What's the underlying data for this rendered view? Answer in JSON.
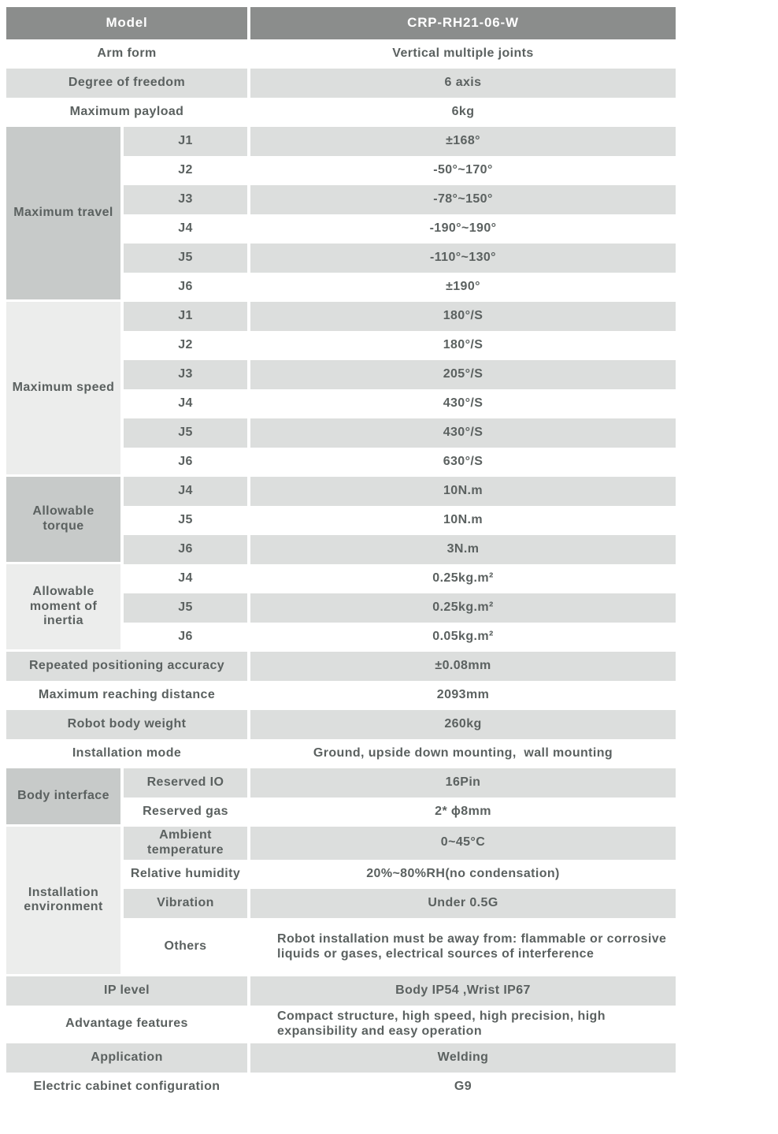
{
  "palette": {
    "header_bg": "#8b8d8c",
    "header_text": "#ffffff",
    "stripe_gray": "#dcdedd",
    "group_label_dark": "#c7cac9",
    "group_label_light": "#ecedec",
    "body_text": "#5b6160",
    "page_bg": "#ffffff"
  },
  "table": {
    "header": {
      "label": "Model",
      "value": "CRP-RH21-06-W"
    },
    "sections": [
      {
        "type": "rows",
        "rows": [
          {
            "label": "Arm form",
            "value": "Vertical multiple joints"
          },
          {
            "label": "Degree of freedom",
            "value": "6 axis"
          },
          {
            "label": "Maximum payload",
            "value": "6kg"
          }
        ]
      },
      {
        "type": "group",
        "label": "Maximum travel",
        "shade": "dark",
        "rows": [
          {
            "label": "J1",
            "value": "±168°"
          },
          {
            "label": "J2",
            "value": "-50°~170°"
          },
          {
            "label": "J3",
            "value": "-78°~150°"
          },
          {
            "label": "J4",
            "value": "-190°~190°"
          },
          {
            "label": "J5",
            "value": "-110°~130°"
          },
          {
            "label": "J6",
            "value": "±190°"
          }
        ]
      },
      {
        "type": "group",
        "label": "Maximum speed",
        "shade": "light",
        "rows": [
          {
            "label": "J1",
            "value": "180°/S"
          },
          {
            "label": "J2",
            "value": "180°/S"
          },
          {
            "label": "J3",
            "value": "205°/S"
          },
          {
            "label": "J4",
            "value": "430°/S"
          },
          {
            "label": "J5",
            "value": "430°/S"
          },
          {
            "label": "J6",
            "value": "630°/S"
          }
        ]
      },
      {
        "type": "group",
        "label": "Allowable torque",
        "shade": "dark",
        "rows": [
          {
            "label": "J4",
            "value": "10N.m"
          },
          {
            "label": "J5",
            "value": "10N.m"
          },
          {
            "label": "J6",
            "value": "3N.m"
          }
        ]
      },
      {
        "type": "group",
        "label": "Allowable moment of inertia",
        "shade": "light",
        "rows": [
          {
            "label": "J4",
            "value": "0.25kg.m²"
          },
          {
            "label": "J5",
            "value": "0.25kg.m²"
          },
          {
            "label": "J6",
            "value": "0.05kg.m²"
          }
        ]
      },
      {
        "type": "rows",
        "rows": [
          {
            "label": "Repeated positioning accuracy",
            "value": "±0.08mm"
          },
          {
            "label": "Maximum reaching distance",
            "value": "2093mm"
          },
          {
            "label": "Robot body weight",
            "value": "260kg"
          },
          {
            "label": "Installation mode",
            "value": "Ground, upside down mounting,  wall mounting"
          }
        ]
      },
      {
        "type": "group",
        "label": "Body interface",
        "shade": "dark",
        "rows": [
          {
            "label": "Reserved IO",
            "value": "16Pin"
          },
          {
            "label": "Reserved gas",
            "value": "2* ϕ8mm"
          }
        ]
      },
      {
        "type": "group",
        "label": "Installation environment",
        "shade": "light",
        "rows": [
          {
            "label": "Ambient temperature",
            "value": "0~45°C"
          },
          {
            "label": "Relative humidity",
            "value": "20%~80%RH(no condensation)"
          },
          {
            "label": "Vibration",
            "value": "Under 0.5G"
          },
          {
            "label": "Others",
            "value": "Robot installation must be away from: flammable or corrosive liquids or gases, electrical sources of interference",
            "height": 74,
            "align": "left"
          }
        ]
      },
      {
        "type": "rows",
        "rows": [
          {
            "label": "IP level",
            "value": "Body IP54 ,Wrist IP67"
          },
          {
            "label": "Advantage features",
            "value": "Compact structure, high speed, high precision, high expansibility and easy operation",
            "height": 48,
            "align": "left"
          },
          {
            "label": "Application",
            "value": "Welding"
          },
          {
            "label": "Electric cabinet configuration",
            "value": "G9"
          }
        ]
      }
    ]
  }
}
